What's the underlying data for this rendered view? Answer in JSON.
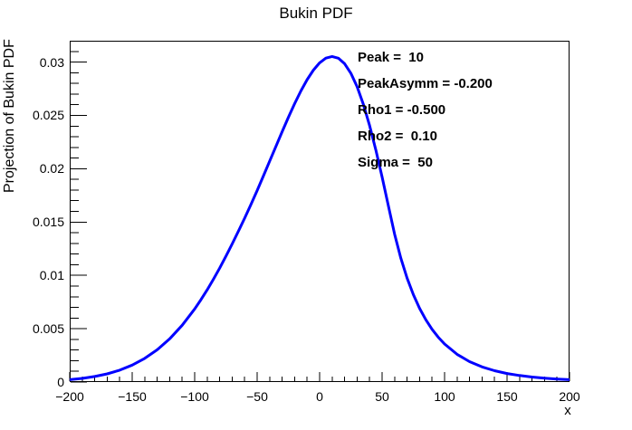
{
  "title": "Bukin PDF",
  "axes": {
    "x": {
      "title": "x",
      "major_ticks": [
        -200,
        -150,
        -100,
        -50,
        0,
        50,
        100,
        150,
        200
      ],
      "tick_labels": [
        "−200",
        "−150",
        "−100",
        "−50",
        "0",
        "50",
        "100",
        "150",
        "200"
      ],
      "minor_step": 10
    },
    "y": {
      "title": "Projection of Bukin PDF",
      "major_ticks": [
        0,
        0.005,
        0.01,
        0.015,
        0.02,
        0.025,
        0.03
      ],
      "tick_labels": [
        "0",
        "0.005",
        "0.01",
        "0.015",
        "0.02",
        "0.025",
        "0.03"
      ],
      "minor_step": 0.001
    }
  },
  "stats": {
    "lines": [
      "Peak =  10",
      "PeakAsymm = -0.200",
      "Rho1 = -0.500",
      "Rho2 =  0.10",
      "Sigma =  50"
    ]
  },
  "chart_data": {
    "type": "line",
    "title": "Bukin PDF",
    "xlabel": "x",
    "ylabel": "Projection of Bukin PDF",
    "xlim": [
      -200,
      200
    ],
    "ylim": [
      0,
      0.032
    ],
    "grid": false,
    "line_color": "#0000ff",
    "line_width": 3,
    "params": {
      "Peak": 10,
      "PeakAsymm": -0.2,
      "Rho1": -0.5,
      "Rho2": 0.1,
      "Sigma": 50
    },
    "x": [
      -200,
      -190,
      -180,
      -170,
      -160,
      -150,
      -140,
      -130,
      -120,
      -110,
      -100,
      -95,
      -90,
      -85,
      -80,
      -75,
      -70,
      -65,
      -60,
      -55,
      -50,
      -45,
      -40,
      -35,
      -30,
      -25,
      -20,
      -15,
      -10,
      -5,
      0,
      5,
      10,
      15,
      20,
      25,
      30,
      35,
      40,
      45,
      50,
      55,
      60,
      65,
      70,
      75,
      80,
      85,
      90,
      95,
      100,
      110,
      120,
      130,
      140,
      150,
      160,
      170,
      180,
      190,
      200
    ],
    "y": [
      0.000222,
      0.000342,
      0.000517,
      0.000766,
      0.001114,
      0.001585,
      0.002212,
      0.003024,
      0.004053,
      0.005322,
      0.00685,
      0.007713,
      0.008641,
      0.009632,
      0.010682,
      0.011788,
      0.012941,
      0.014137,
      0.015366,
      0.016636,
      0.017955,
      0.019315,
      0.020699,
      0.022086,
      0.02347,
      0.024818,
      0.0261,
      0.02729,
      0.028349,
      0.029243,
      0.02993,
      0.03037,
      0.030525,
      0.030359,
      0.029842,
      0.028953,
      0.027684,
      0.026041,
      0.02405,
      0.021756,
      0.019225,
      0.016533,
      0.013867,
      0.011612,
      0.009745,
      0.008196,
      0.006909,
      0.005837,
      0.004943,
      0.004195,
      0.003567,
      0.002598,
      0.001909,
      0.001415,
      0.001059,
      0.000799,
      0.000608,
      0.000468,
      0.000362,
      0.000284,
      0.000224
    ]
  }
}
